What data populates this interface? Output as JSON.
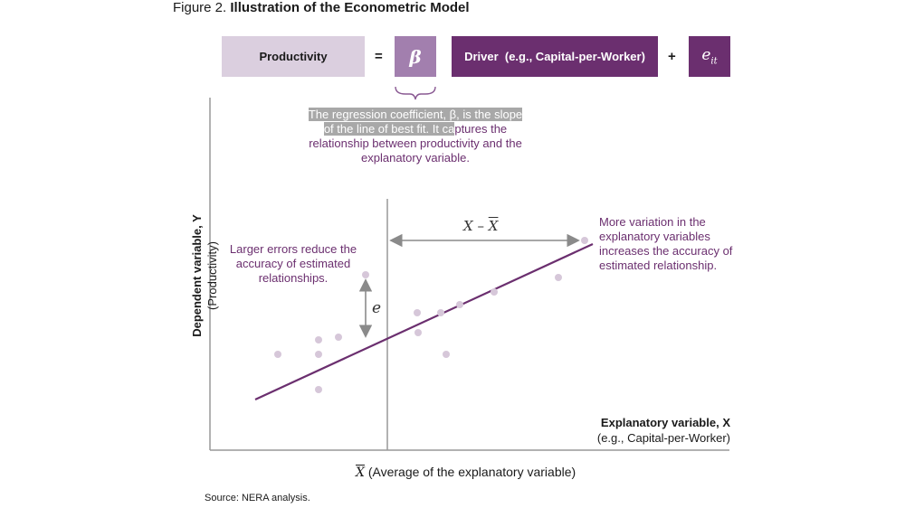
{
  "figure": {
    "number": "Figure 2.",
    "title": "Illustration of the Econometric Model"
  },
  "equation": {
    "dependent": "Productivity",
    "equals": "=",
    "beta": "β",
    "driver": "Driver  (e.g., Capital-per-Worker)",
    "plus": "+",
    "error_base": "e",
    "error_sub": "it"
  },
  "annotations": {
    "beta_note_hl1": "The regression coefficient, β, is the slope",
    "beta_note_hl2": "of the line of best fit. It ca",
    "beta_note_rest2": "ptures the",
    "beta_note_rest3": "relationship between productivity and the explanatory variable.",
    "error_note": "Larger errors reduce the accuracy of estimated relationships.",
    "variation_note": "More variation in the explanatory variables increases the accuracy of estimated relationship.",
    "e_label": "e",
    "xdiff_x": "X",
    "xdiff_sep": " – ",
    "xdiff_xbar": "X"
  },
  "axes": {
    "y_title": "Dependent variable, Y",
    "y_sub": "(Productivity)",
    "x_title": "Explanatory variable, X",
    "x_sub": "(e.g., Capital-per-Worker)",
    "xbar_symbol": "X",
    "xbar_text": "(Average of the explanatory variable)"
  },
  "source": "Source: NERA analysis.",
  "colors": {
    "accent_dark": "#6b2f6f",
    "accent_mid": "#a27fae",
    "accent_light": "#dbcfdf",
    "points": "#d6c7d9",
    "axis": "#999999"
  }
}
